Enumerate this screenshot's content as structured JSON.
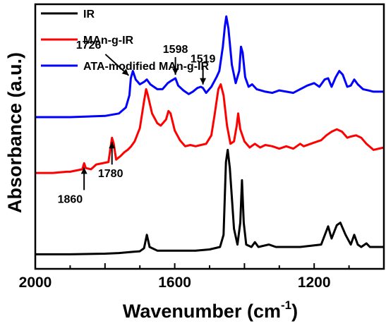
{
  "chart_data": {
    "type": "line",
    "title": "",
    "xlabel": "Wavenumber (cm",
    "xlabel_sup": "-1",
    "xlabel_close": ")",
    "ylabel": "Absorbance (a.u.)",
    "xlim": [
      2000,
      1000
    ],
    "x_reversed": true,
    "x_ticks": [
      2000,
      1600,
      1200
    ],
    "y_ticks_shown": false,
    "grid": false,
    "legend_position": "top-left",
    "series": [
      {
        "name": "IR",
        "color": "#000000",
        "points": [
          [
            2000,
            0.04
          ],
          [
            1900,
            0.04
          ],
          [
            1800,
            0.045
          ],
          [
            1760,
            0.05
          ],
          [
            1720,
            0.06
          ],
          [
            1700,
            0.065
          ],
          [
            1688,
            0.09
          ],
          [
            1680,
            0.2
          ],
          [
            1672,
            0.1
          ],
          [
            1650,
            0.07
          ],
          [
            1600,
            0.07
          ],
          [
            1540,
            0.07
          ],
          [
            1500,
            0.08
          ],
          [
            1470,
            0.1
          ],
          [
            1460,
            0.2
          ],
          [
            1453,
            0.8
          ],
          [
            1448,
            0.9
          ],
          [
            1442,
            0.75
          ],
          [
            1430,
            0.25
          ],
          [
            1420,
            0.12
          ],
          [
            1412,
            0.3
          ],
          [
            1407,
            0.65
          ],
          [
            1402,
            0.3
          ],
          [
            1395,
            0.12
          ],
          [
            1380,
            0.1
          ],
          [
            1370,
            0.14
          ],
          [
            1360,
            0.1
          ],
          [
            1330,
            0.12
          ],
          [
            1310,
            0.1
          ],
          [
            1240,
            0.1
          ],
          [
            1180,
            0.12
          ],
          [
            1160,
            0.27
          ],
          [
            1150,
            0.17
          ],
          [
            1135,
            0.28
          ],
          [
            1125,
            0.3
          ],
          [
            1110,
            0.2
          ],
          [
            1095,
            0.12
          ],
          [
            1085,
            0.2
          ],
          [
            1075,
            0.12
          ],
          [
            1065,
            0.1
          ],
          [
            1050,
            0.13
          ],
          [
            1040,
            0.1
          ],
          [
            1000,
            0.1
          ]
        ]
      },
      {
        "name": "MAn-g-IR",
        "color": "#ff0000",
        "points": [
          [
            2000,
            0.71
          ],
          [
            1950,
            0.71
          ],
          [
            1910,
            0.72
          ],
          [
            1900,
            0.72
          ],
          [
            1865,
            0.74
          ],
          [
            1860,
            0.79
          ],
          [
            1855,
            0.75
          ],
          [
            1840,
            0.74
          ],
          [
            1825,
            0.78
          ],
          [
            1790,
            0.8
          ],
          [
            1785,
            0.9
          ],
          [
            1780,
            1.0
          ],
          [
            1775,
            0.95
          ],
          [
            1768,
            0.82
          ],
          [
            1755,
            0.85
          ],
          [
            1745,
            0.88
          ],
          [
            1735,
            0.9
          ],
          [
            1725,
            0.93
          ],
          [
            1715,
            0.97
          ],
          [
            1700,
            1.08
          ],
          [
            1688,
            1.3
          ],
          [
            1682,
            1.4
          ],
          [
            1678,
            1.36
          ],
          [
            1665,
            1.2
          ],
          [
            1650,
            1.12
          ],
          [
            1640,
            1.1
          ],
          [
            1625,
            1.15
          ],
          [
            1618,
            1.22
          ],
          [
            1612,
            1.2
          ],
          [
            1600,
            1.06
          ],
          [
            1585,
            0.98
          ],
          [
            1570,
            0.93
          ],
          [
            1555,
            0.94
          ],
          [
            1540,
            0.93
          ],
          [
            1525,
            0.94
          ],
          [
            1510,
            0.95
          ],
          [
            1495,
            1.02
          ],
          [
            1485,
            1.2
          ],
          [
            1475,
            1.4
          ],
          [
            1468,
            1.44
          ],
          [
            1460,
            1.35
          ],
          [
            1450,
            1.1
          ],
          [
            1440,
            0.95
          ],
          [
            1430,
            0.97
          ],
          [
            1422,
            1.1
          ],
          [
            1418,
            1.2
          ],
          [
            1412,
            1.07
          ],
          [
            1400,
            0.97
          ],
          [
            1385,
            0.92
          ],
          [
            1370,
            0.95
          ],
          [
            1355,
            0.92
          ],
          [
            1340,
            0.94
          ],
          [
            1320,
            0.93
          ],
          [
            1300,
            0.91
          ],
          [
            1280,
            0.93
          ],
          [
            1260,
            0.91
          ],
          [
            1240,
            0.95
          ],
          [
            1230,
            0.93
          ],
          [
            1200,
            0.96
          ],
          [
            1180,
            0.98
          ],
          [
            1165,
            1.02
          ],
          [
            1150,
            1.05
          ],
          [
            1135,
            1.07
          ],
          [
            1120,
            1.05
          ],
          [
            1105,
            1.0
          ],
          [
            1095,
            1.01
          ],
          [
            1080,
            1.02
          ],
          [
            1065,
            1.0
          ],
          [
            1050,
            0.95
          ],
          [
            1030,
            0.9
          ],
          [
            1000,
            0.92
          ]
        ]
      },
      {
        "name": "ATA-modified MAn-g-IR",
        "color": "#0000ff",
        "points": [
          [
            2000,
            1.17
          ],
          [
            1900,
            1.17
          ],
          [
            1800,
            1.18
          ],
          [
            1760,
            1.2
          ],
          [
            1740,
            1.25
          ],
          [
            1730,
            1.35
          ],
          [
            1726,
            1.49
          ],
          [
            1720,
            1.55
          ],
          [
            1712,
            1.48
          ],
          [
            1700,
            1.44
          ],
          [
            1688,
            1.46
          ],
          [
            1680,
            1.48
          ],
          [
            1670,
            1.44
          ],
          [
            1660,
            1.42
          ],
          [
            1650,
            1.4
          ],
          [
            1635,
            1.4
          ],
          [
            1620,
            1.45
          ],
          [
            1610,
            1.47
          ],
          [
            1598,
            1.49
          ],
          [
            1590,
            1.43
          ],
          [
            1575,
            1.39
          ],
          [
            1560,
            1.36
          ],
          [
            1548,
            1.38
          ],
          [
            1535,
            1.41
          ],
          [
            1525,
            1.42
          ],
          [
            1519,
            1.41
          ],
          [
            1510,
            1.37
          ],
          [
            1495,
            1.42
          ],
          [
            1480,
            1.5
          ],
          [
            1472,
            1.55
          ],
          [
            1462,
            1.75
          ],
          [
            1456,
            1.92
          ],
          [
            1452,
            2.0
          ],
          [
            1446,
            1.9
          ],
          [
            1436,
            1.6
          ],
          [
            1425,
            1.45
          ],
          [
            1415,
            1.55
          ],
          [
            1410,
            1.75
          ],
          [
            1405,
            1.7
          ],
          [
            1398,
            1.5
          ],
          [
            1388,
            1.42
          ],
          [
            1378,
            1.44
          ],
          [
            1365,
            1.4
          ],
          [
            1340,
            1.38
          ],
          [
            1320,
            1.37
          ],
          [
            1300,
            1.39
          ],
          [
            1280,
            1.38
          ],
          [
            1260,
            1.37
          ],
          [
            1240,
            1.4
          ],
          [
            1220,
            1.43
          ],
          [
            1200,
            1.45
          ],
          [
            1185,
            1.42
          ],
          [
            1170,
            1.48
          ],
          [
            1160,
            1.49
          ],
          [
            1150,
            1.42
          ],
          [
            1138,
            1.5
          ],
          [
            1128,
            1.55
          ],
          [
            1118,
            1.52
          ],
          [
            1105,
            1.42
          ],
          [
            1095,
            1.43
          ],
          [
            1085,
            1.48
          ],
          [
            1075,
            1.44
          ],
          [
            1060,
            1.4
          ],
          [
            1045,
            1.39
          ],
          [
            1030,
            1.38
          ],
          [
            1000,
            1.38
          ]
        ]
      }
    ],
    "annotations": [
      {
        "text": "1726",
        "x": 1726,
        "series": 2,
        "direction": "down"
      },
      {
        "text": "1598",
        "x": 1598,
        "series": 2,
        "direction": "down"
      },
      {
        "text": "1519",
        "x": 1519,
        "series": 2,
        "direction": "down"
      },
      {
        "text": "1860",
        "x": 1860,
        "series": 1,
        "direction": "up"
      },
      {
        "text": "1780",
        "x": 1780,
        "series": 1,
        "direction": "up"
      }
    ]
  }
}
